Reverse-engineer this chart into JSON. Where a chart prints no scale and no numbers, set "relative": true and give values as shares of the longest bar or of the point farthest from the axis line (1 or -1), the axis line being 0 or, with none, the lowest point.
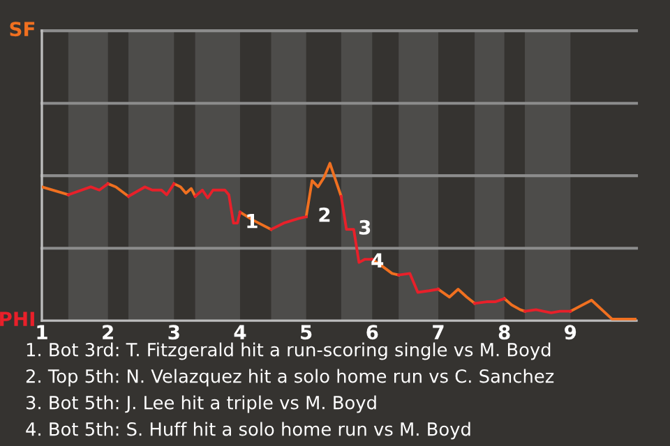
{
  "chart_data": {
    "type": "line",
    "relative": true,
    "xlim": [
      1,
      10
    ],
    "xticks": [
      1,
      2,
      3,
      4,
      5,
      6,
      7,
      8,
      9
    ],
    "marker": "none",
    "line_style": "solid",
    "series": [
      {
        "color": "#f07020",
        "x": [
          1,
          1.4,
          null,
          2,
          2.12,
          2.31,
          null,
          3,
          3.1,
          3.18,
          3.26,
          3.32,
          null,
          4,
          4.19,
          4.47,
          null,
          5,
          5.09,
          5.18,
          5.27,
          5.36,
          5.44,
          5.53,
          null,
          6,
          6.14,
          6.3,
          6.4,
          null,
          7,
          7.17,
          7.3,
          7.43,
          7.55,
          null,
          8,
          8.11,
          8.24,
          8.31,
          null,
          9,
          9.32,
          9.63,
          10
        ],
        "values": [
          0.85,
          0.8,
          null,
          0.87,
          0.85,
          0.79,
          null,
          0.87,
          0.85,
          0.81,
          0.84,
          0.79,
          null,
          0.69,
          0.64,
          0.58,
          null,
          0.66,
          0.89,
          0.85,
          0.91,
          1,
          0.9,
          0.79,
          null,
          0.39,
          0.35,
          0.3,
          0.29,
          null,
          0.2,
          0.15,
          0.2,
          0.15,
          0.11,
          null,
          0.14,
          0.1,
          0.07,
          0.06,
          null,
          0.06,
          0.13,
          0.01,
          0.01
        ]
      },
      {
        "color": "#e8202a",
        "x": [
          1.4,
          1.74,
          1.87,
          2,
          null,
          2.31,
          2.56,
          2.67,
          2.81,
          2.89,
          3,
          null,
          3.32,
          3.43,
          3.51,
          3.59,
          3.77,
          3.83,
          3.9,
          3.96,
          4,
          null,
          4.47,
          4.66,
          4.89,
          5,
          null,
          5.53,
          5.61,
          5.72,
          5.8,
          5.89,
          6,
          null,
          6.4,
          6.57,
          6.69,
          6.86,
          7,
          null,
          7.55,
          7.73,
          7.86,
          8,
          null,
          8.31,
          8.48,
          8.59,
          8.71,
          8.84,
          9
        ],
        "values": [
          0.8,
          0.85,
          0.83,
          0.87,
          null,
          0.79,
          0.85,
          0.83,
          0.83,
          0.8,
          0.87,
          null,
          0.79,
          0.83,
          0.78,
          0.83,
          0.83,
          0.8,
          0.62,
          0.62,
          0.69,
          null,
          0.58,
          0.62,
          0.65,
          0.66,
          null,
          0.79,
          0.58,
          0.58,
          0.37,
          0.39,
          0.39,
          null,
          0.29,
          0.3,
          0.18,
          0.19,
          0.2,
          null,
          0.11,
          0.12,
          0.12,
          0.14,
          null,
          0.06,
          0.07,
          0.06,
          0.05,
          0.06,
          0.06
        ]
      }
    ],
    "ref_lines": [
      {
        "axis": "y",
        "value": 1.842,
        "label": "SF",
        "color": "#8c8c8c"
      },
      {
        "axis": "y",
        "value": 1.381,
        "color": "#8c8c8c"
      },
      {
        "axis": "y",
        "value": 0.921,
        "color": "#8c8c8c"
      },
      {
        "axis": "y",
        "value": 0.46,
        "color": "#8c8c8c"
      }
    ],
    "ylabel": "PHI",
    "bands": [
      {
        "axis": "x",
        "from": 1.4,
        "to": 2,
        "color": "#4d4c4a"
      },
      {
        "axis": "x",
        "from": 2.31,
        "to": 3,
        "color": "#4d4c4a"
      },
      {
        "axis": "x",
        "from": 3.32,
        "to": 4,
        "color": "#4d4c4a"
      },
      {
        "axis": "x",
        "from": 4.47,
        "to": 5,
        "color": "#4d4c4a"
      },
      {
        "axis": "x",
        "from": 5.53,
        "to": 6,
        "color": "#4d4c4a"
      },
      {
        "axis": "x",
        "from": 6.4,
        "to": 7,
        "color": "#4d4c4a"
      },
      {
        "axis": "x",
        "from": 7.55,
        "to": 8,
        "color": "#4d4c4a"
      },
      {
        "axis": "x",
        "from": 8.31,
        "to": 9,
        "color": "#4d4c4a"
      }
    ],
    "annotations": [
      {
        "text": "1",
        "x": 3.9,
        "y": 0.62
      },
      {
        "text": "2",
        "x": 5,
        "y": 0.66
      },
      {
        "text": "3",
        "x": 5.61,
        "y": 0.58
      },
      {
        "text": "4",
        "x": 5.8,
        "y": 0.37
      },
      "1. Bot 3rd: T. Fitzgerald hit a run-scoring single vs M. Boyd",
      "2. Top 5th: N. Velazquez hit a solo home run vs C. Sanchez",
      "3. Bot 5th: J. Lee hit a triple vs M. Boyd",
      "4. Bot 5th: S. Huff hit a solo home run vs M. Boyd"
    ]
  }
}
